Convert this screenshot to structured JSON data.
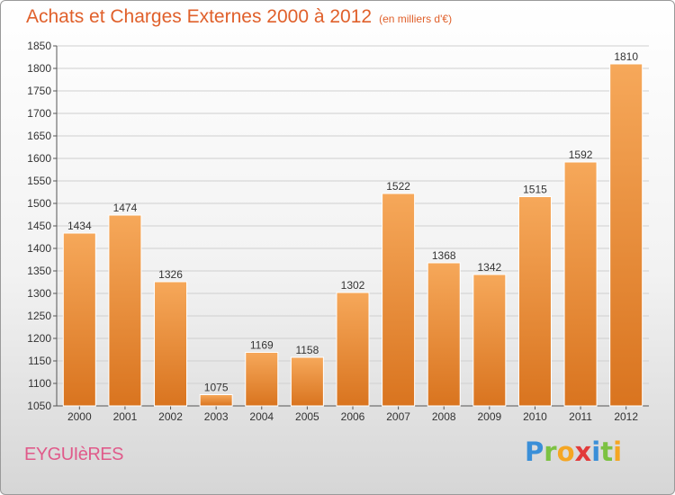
{
  "title": {
    "main": "Achats et Charges Externes 2000 à 2012",
    "unit": "(en milliers d'€)"
  },
  "town": "EYGUIèRES",
  "logo": {
    "letters": [
      "P",
      "r",
      "o",
      "x",
      "i",
      "t",
      "i"
    ],
    "colors": [
      "#3a8fd8",
      "#7cc242",
      "#f5a623",
      "#e23b3b",
      "#3a8fd8",
      "#7cc242",
      "#f5a623"
    ]
  },
  "colors": {
    "bar_top": "#f6a85a",
    "bar_bottom": "#d9741f",
    "title": "#e0602b",
    "town": "#e05a8a"
  },
  "chart_data": {
    "type": "bar",
    "title": "Achats et Charges Externes 2000 à 2012",
    "subtitle": "(en milliers d'€)",
    "xlabel": "",
    "ylabel": "",
    "categories": [
      "2000",
      "2001",
      "2002",
      "2003",
      "2004",
      "2005",
      "2006",
      "2007",
      "2008",
      "2009",
      "2010",
      "2011",
      "2012"
    ],
    "values": [
      1434,
      1474,
      1326,
      1075,
      1169,
      1158,
      1302,
      1522,
      1368,
      1342,
      1515,
      1592,
      1810
    ],
    "ylim": [
      1050,
      1850
    ],
    "yticks": [
      1050,
      1100,
      1150,
      1200,
      1250,
      1300,
      1350,
      1400,
      1450,
      1500,
      1550,
      1600,
      1650,
      1700,
      1750,
      1800,
      1850
    ],
    "grid": true,
    "legend": "none"
  }
}
